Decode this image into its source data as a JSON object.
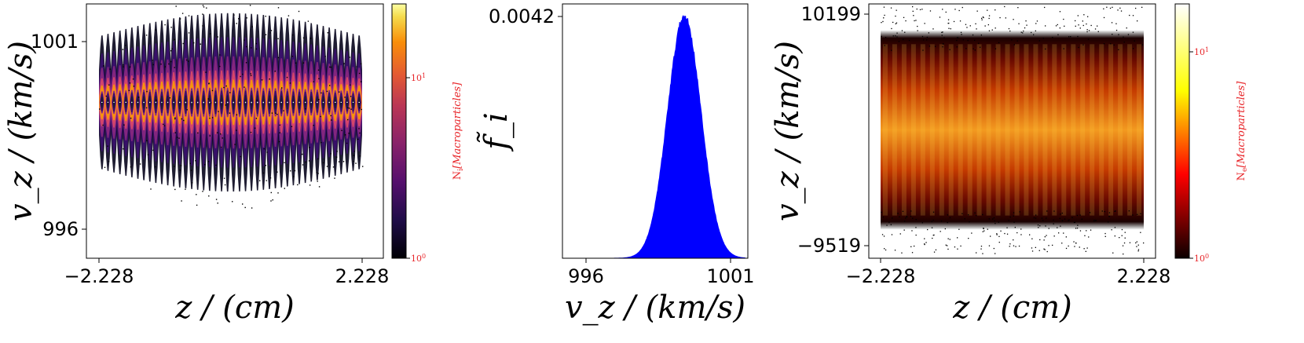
{
  "chart_data": [
    {
      "type": "heatmap",
      "title": "",
      "xlabel": "z / (cm)",
      "ylabel": "v_z / (km/s)",
      "xticks": [
        "−2.228",
        "2.228"
      ],
      "yticks": [
        "1001",
        "996"
      ],
      "xlim": [
        -2.228,
        2.228
      ],
      "ylim": [
        995.6,
        1001.8
      ],
      "band": {
        "center": 999.4,
        "half_width": 0.9,
        "oscillations": 22
      },
      "colorbar": {
        "label": "N_i[Macroparticles]",
        "ticks": [
          "10^0",
          "10^1"
        ],
        "scale": "log",
        "colormap": "inferno"
      }
    },
    {
      "type": "area",
      "title": "",
      "xlabel": "v_z / (km/s)",
      "ylabel": "f̃_i",
      "xticks": [
        "996",
        "1001"
      ],
      "yticks": [
        "0.0042"
      ],
      "xlim": [
        995.5,
        1001.5
      ],
      "ylim": [
        0,
        0.0045
      ],
      "distribution": {
        "mean": 999.4,
        "sigma": 0.58,
        "peak": 0.0042
      },
      "fill_color": "#0000ff"
    },
    {
      "type": "heatmap",
      "title": "",
      "xlabel": "z / (cm)",
      "ylabel": "v_z / (km/s)",
      "xticks": [
        "−2.228",
        "2.228"
      ],
      "yticks": [
        "10199",
        "−9519"
      ],
      "xlim": [
        -2.228,
        2.228
      ],
      "ylim": [
        -10800,
        10900
      ],
      "band": {
        "center": 340,
        "half_width": 6800,
        "oscillations": 28
      },
      "colorbar": {
        "label": "N_e[Macroparticles]",
        "ticks": [
          "10^0",
          "10^1"
        ],
        "scale": "log",
        "colormap": "hot"
      }
    }
  ]
}
